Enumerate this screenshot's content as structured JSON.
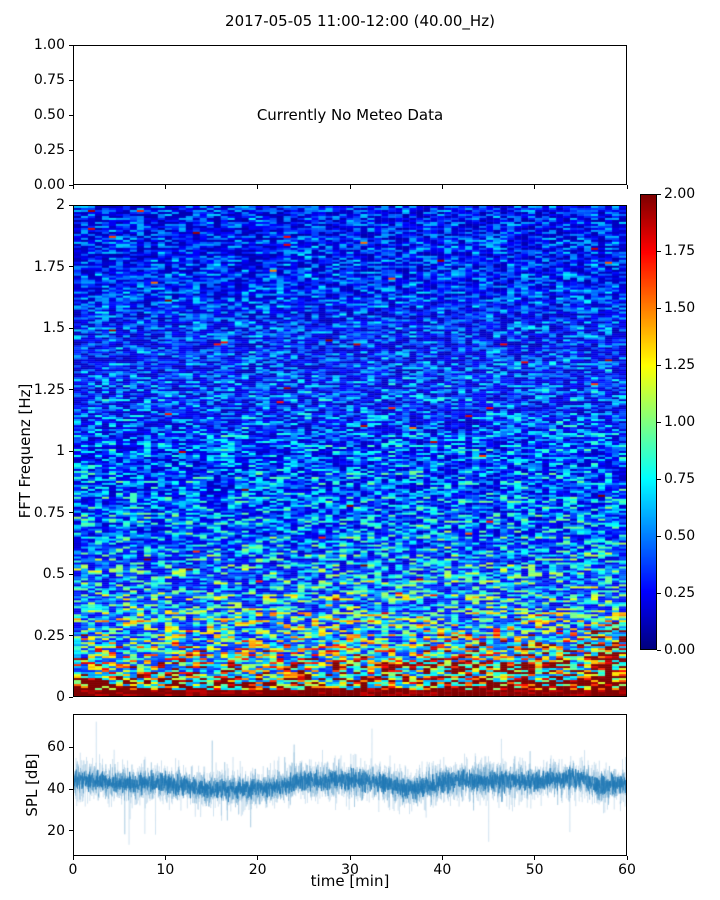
{
  "figure": {
    "title": "2017-05-05 11:00-12:00 (40.00_Hz)",
    "background": "#ffffff"
  },
  "chart_data": [
    {
      "panel": "meteo",
      "type": "empty",
      "annotation": "Currently No Meteo Data",
      "ylim": [
        0,
        1
      ],
      "yticks": {
        "values": [
          0,
          0.25,
          0.5,
          0.75,
          1
        ],
        "labels": [
          "0.00",
          "0.25",
          "0.50",
          "0.75",
          "1.00"
        ]
      },
      "xticks": {
        "values": [
          0,
          10,
          20,
          30,
          40,
          50,
          60
        ],
        "labels": []
      }
    },
    {
      "panel": "spectrogram",
      "type": "heatmap",
      "ylabel": "FFT Frequenz [Hz]",
      "xlim": [
        0,
        60
      ],
      "ylim": [
        0,
        2
      ],
      "clim": [
        0,
        2
      ],
      "colormap": "jet",
      "yticks": {
        "values": [
          0,
          0.25,
          0.5,
          0.75,
          1,
          1.25,
          1.5,
          1.75,
          2
        ],
        "labels": [
          "0",
          "0.25",
          "0.5",
          "0.75",
          "1",
          "1.25",
          "1.5",
          "1.75",
          "2"
        ]
      },
      "grid": false,
      "cols": 79,
      "rows": 246,
      "seed": 42,
      "mean_profile": [
        [
          0,
          1.95
        ],
        [
          0.03,
          1.8
        ],
        [
          0.06,
          1.45
        ],
        [
          0.1,
          1.15
        ],
        [
          0.15,
          1.0
        ],
        [
          0.2,
          0.88
        ],
        [
          0.25,
          0.8
        ],
        [
          0.3,
          0.73
        ],
        [
          0.4,
          0.63
        ],
        [
          0.5,
          0.57
        ],
        [
          0.6,
          0.52
        ],
        [
          0.75,
          0.47
        ],
        [
          0.9,
          0.44
        ],
        [
          1.0,
          0.42
        ],
        [
          1.2,
          0.39
        ],
        [
          1.4,
          0.36
        ],
        [
          1.6,
          0.34
        ],
        [
          1.8,
          0.33
        ],
        [
          2.0,
          0.32
        ]
      ],
      "noise": {
        "floor": 0.3,
        "span": 1.7,
        "shape": 1.7,
        "spike_prob": 0.02,
        "spike_gain": 1.9,
        "red_dot_prob": 0.004
      },
      "hot_regions": [
        {
          "t": [
            38,
            60
          ],
          "f": [
            0,
            0.28
          ],
          "boost": 1.3
        },
        {
          "t": [
            56,
            60
          ],
          "f": [
            0,
            0.3
          ],
          "boost": 1.5
        },
        {
          "t": [
            33,
            50
          ],
          "f": [
            0.1,
            0.14
          ],
          "boost": 1.6
        },
        {
          "t": [
            0,
            4
          ],
          "f": [
            0,
            0.1
          ],
          "boost": 1.5
        }
      ],
      "solid_red_below_hz": 0.025,
      "colorbar": {
        "clim": [
          0,
          2
        ],
        "ticks": {
          "values": [
            0,
            0.25,
            0.5,
            0.75,
            1,
            1.25,
            1.5,
            1.75,
            2
          ],
          "labels": [
            "0.00",
            "0.25",
            "0.50",
            "0.75",
            "1.00",
            "1.25",
            "1.50",
            "1.75",
            "2.00"
          ]
        }
      }
    },
    {
      "panel": "spl",
      "type": "line",
      "ylabel": "SPL [dB]",
      "xlabel": "time [min]",
      "xlim": [
        0,
        60
      ],
      "ylim": [
        8,
        76
      ],
      "yticks": {
        "values": [
          20,
          40,
          60
        ],
        "labels": [
          "20",
          "40",
          "60"
        ]
      },
      "xticks": {
        "values": [
          0,
          10,
          20,
          30,
          40,
          50,
          60
        ],
        "labels": [
          "0",
          "10",
          "20",
          "30",
          "40",
          "50",
          "60"
        ]
      },
      "color": "#1f77b4",
      "seed": 7,
      "points_per_series": 3000,
      "mean_curve": [
        [
          0,
          44
        ],
        [
          3,
          43.5
        ],
        [
          6,
          42.5
        ],
        [
          9,
          43.5
        ],
        [
          12,
          41.5
        ],
        [
          15,
          39.5
        ],
        [
          18,
          40.5
        ],
        [
          21,
          40
        ],
        [
          24,
          43.5
        ],
        [
          27,
          44
        ],
        [
          30,
          44.5
        ],
        [
          33,
          43.5
        ],
        [
          36,
          40
        ],
        [
          38,
          41
        ],
        [
          40,
          43
        ],
        [
          43,
          44.5
        ],
        [
          46,
          44
        ],
        [
          49,
          43.5
        ],
        [
          52,
          44.5
        ],
        [
          55,
          45.5
        ],
        [
          57,
          42
        ],
        [
          60,
          42.5
        ]
      ],
      "series": [
        {
          "name": "spl-envelope-outer",
          "std": 9.0,
          "alpha": 0.16,
          "spike_prob": 0.005,
          "spike_amp": 21
        },
        {
          "name": "spl-envelope-inner",
          "std": 5.8,
          "alpha": 0.3,
          "spike_prob": 0.003,
          "spike_amp": 15
        },
        {
          "name": "spl-main",
          "std": 3.6,
          "alpha": 0.92,
          "spike_prob": 0.0015,
          "spike_amp": 9
        }
      ]
    }
  ]
}
